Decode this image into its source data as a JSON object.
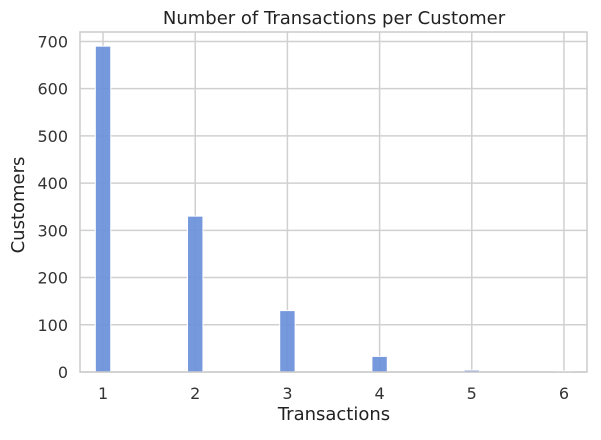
{
  "chart_data": {
    "type": "bar",
    "title": "Number of Transactions per Customer",
    "xlabel": "Transactions",
    "ylabel": "Customers",
    "x": [
      1,
      2,
      3,
      4,
      5,
      6
    ],
    "values": [
      690,
      330,
      130,
      33,
      4,
      2
    ],
    "xticks": [
      "1",
      "2",
      "3",
      "4",
      "5",
      "6"
    ],
    "yticks": [
      "0",
      "100",
      "200",
      "300",
      "400",
      "500",
      "600",
      "700"
    ],
    "xlim": [
      0.75,
      6.25
    ],
    "ylim": [
      0,
      720
    ],
    "grid": true,
    "bar_color": "#6a8fd9"
  }
}
